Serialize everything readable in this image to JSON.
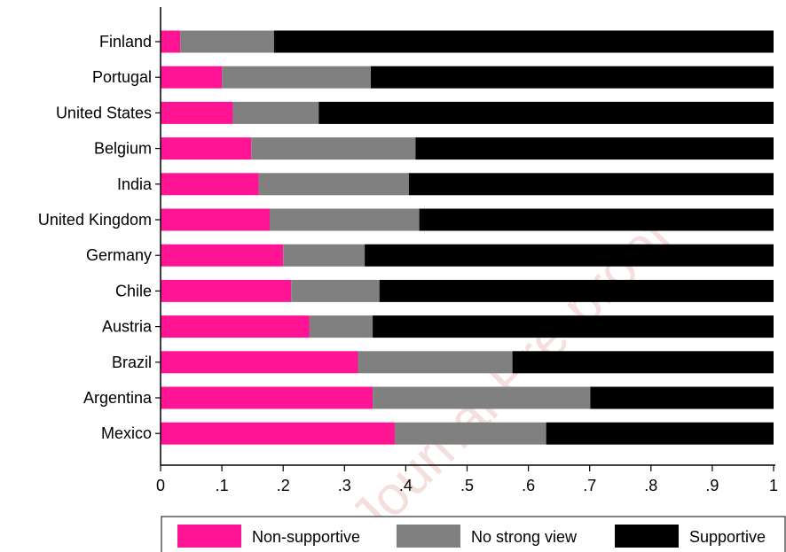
{
  "chart_data": {
    "type": "bar",
    "orientation": "horizontal",
    "stacked": true,
    "categories": [
      "Finland",
      "Portugal",
      "United States",
      "Belgium",
      "India",
      "United Kingdom",
      "Germany",
      "Chile",
      "Austria",
      "Brazil",
      "Argentina",
      "Mexico"
    ],
    "series": [
      {
        "name": "Non-supportive",
        "color": "#ff1493",
        "values": [
          0.032,
          0.1,
          0.118,
          0.148,
          0.16,
          0.178,
          0.2,
          0.213,
          0.243,
          0.322,
          0.346,
          0.382
        ]
      },
      {
        "name": "No strong view",
        "color": "#808080",
        "values": [
          0.153,
          0.243,
          0.14,
          0.268,
          0.245,
          0.244,
          0.133,
          0.144,
          0.103,
          0.252,
          0.355,
          0.247
        ]
      },
      {
        "name": "Supportive",
        "color": "#000000",
        "values": [
          0.815,
          0.657,
          0.742,
          0.584,
          0.595,
          0.578,
          0.667,
          0.643,
          0.654,
          0.426,
          0.299,
          0.371
        ]
      }
    ],
    "xlim": [
      0,
      1
    ],
    "xticks": [
      0,
      0.1,
      0.2,
      0.3,
      0.4,
      0.5,
      0.6,
      0.7,
      0.8,
      0.9,
      1
    ],
    "xtick_labels": [
      "0",
      ".1",
      ".2",
      ".3",
      ".4",
      ".5",
      ".6",
      ".7",
      ".8",
      ".9",
      "1"
    ],
    "title": "",
    "xlabel": "",
    "ylabel": "",
    "grid": false,
    "legend_position": "bottom"
  },
  "watermark_text": "Journal Pre-proof"
}
